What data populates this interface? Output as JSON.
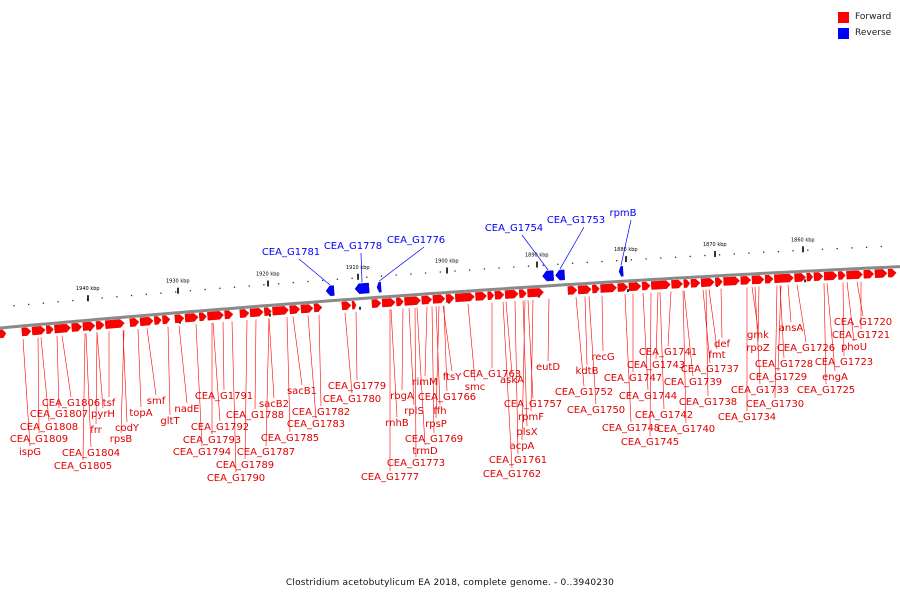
{
  "legend": {
    "forward_label": "Forward",
    "reverse_label": "Reverse",
    "forward_color": "#ff0000",
    "reverse_color": "#0000ff"
  },
  "caption": "Clostridium acetobutylicum EA 2018, complete genome. - 0..3940230",
  "ticks": [
    "1940 kbp",
    "1930 kbp",
    "1920 kbp",
    "1910 kbp",
    "1900 kbp",
    "1890 kbp",
    "1880 kbp",
    "1870 kbp",
    "1860 kbp"
  ],
  "reverse_genes": [
    "CEA_G1781",
    "CEA_G1778",
    "CEA_G1776",
    "CEA_G1754",
    "CEA_G1753",
    "rpmB"
  ],
  "forward_genes": [
    "CEA_G1806",
    "CEA_G1807",
    "CEA_G1808",
    "CEA_G1809",
    "ispG",
    "tsf",
    "pyrH",
    "frr",
    "CEA_G1804",
    "CEA_G1805",
    "codY",
    "rpsB",
    "topA",
    "smf",
    "gltT",
    "nadE",
    "CEA_G1791",
    "CEA_G1792",
    "CEA_G1793",
    "CEA_G1794",
    "CEA_G1788",
    "sacB2",
    "CEA_G1789",
    "CEA_G1790",
    "CEA_G1787",
    "CEA_G1785",
    "sacB1",
    "CEA_G1782",
    "CEA_G1783",
    "CEA_G1779",
    "CEA_G1780",
    "CEA_G1777",
    "rnhB",
    "rbgA",
    "rplS",
    "rimM",
    "ffh",
    "rpsP",
    "CEA_G1766",
    "ftsY",
    "CEA_G1769",
    "trmD",
    "CEA_G1773",
    "smc",
    "CEA_G1763",
    "askA",
    "eutD",
    "CEA_G1757",
    "rpmF",
    "plsX",
    "acpA",
    "CEA_G1761",
    "CEA_G1762",
    "kdtB",
    "CEA_G1752",
    "recG",
    "CEA_G1750",
    "CEA_G1747",
    "CEA_G1748",
    "CEA_G1745",
    "CEA_G1744",
    "CEA_G1743",
    "CEA_G1742",
    "CEA_G1741",
    "CEA_G1740",
    "CEA_G1739",
    "CEA_G1738",
    "fmt",
    "def",
    "CEA_G1737",
    "CEA_G1734",
    "gmk",
    "rpoZ",
    "CEA_G1733",
    "CEA_G1730",
    "CEA_G1728",
    "CEA_G1729",
    "ansA",
    "CEA_G1726",
    "CEA_G1725",
    "engA",
    "CEA_G1723",
    "phoU",
    "CEA_G1721",
    "CEA_G1720"
  ]
}
